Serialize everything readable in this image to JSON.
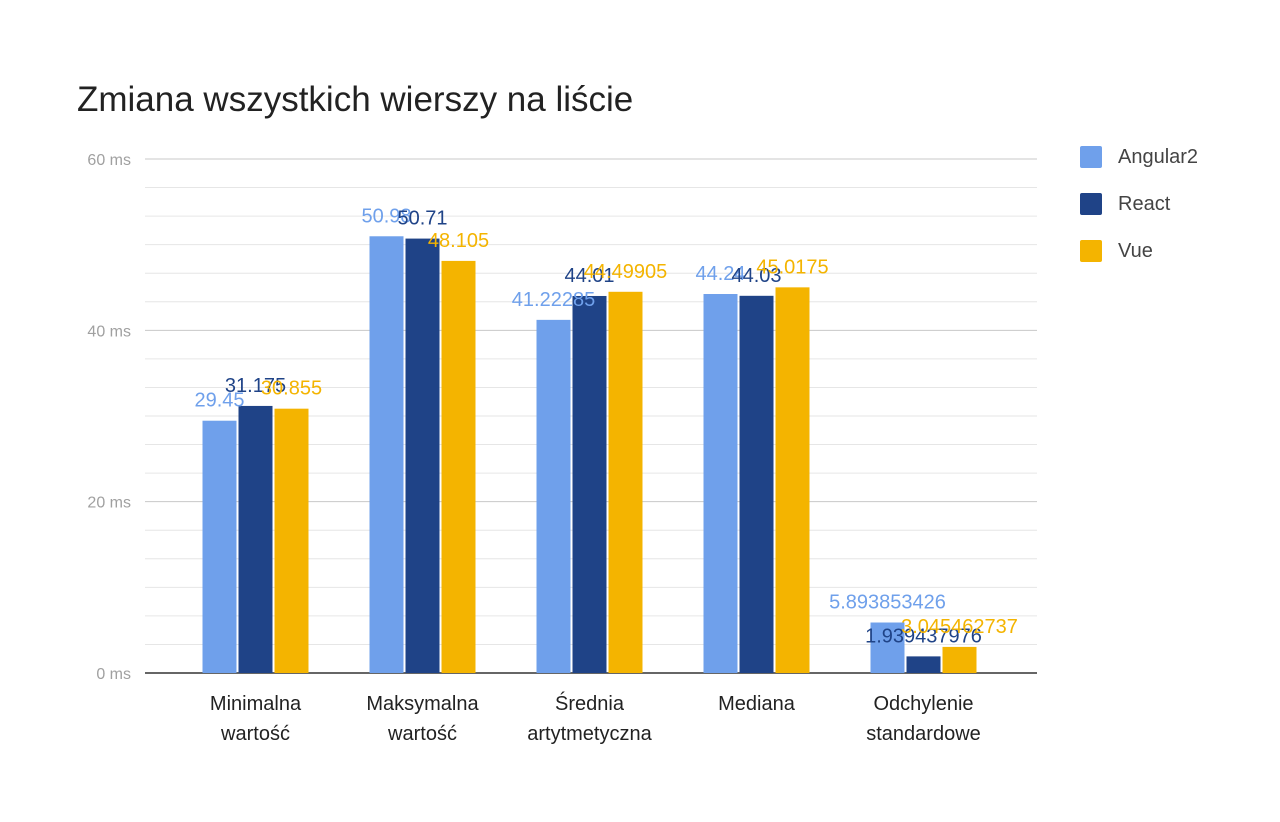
{
  "chart_data": {
    "type": "bar",
    "title": "Zmiana wszystkich wierszy na liście",
    "xlabel": "",
    "ylabel": "",
    "ylim": [
      0,
      60
    ],
    "yticks": [
      0,
      20,
      40,
      60
    ],
    "ytick_labels": [
      "0 ms",
      "20 ms",
      "40 ms",
      "60 ms"
    ],
    "minor_gridlines_per_interval": 6,
    "grid": true,
    "legend_position": "right",
    "categories": [
      [
        "Minimalna",
        "wartość"
      ],
      [
        "Maksymalna",
        "wartość"
      ],
      [
        "Średnia",
        "artytmetyczna"
      ],
      [
        "Mediana"
      ],
      [
        "Odchylenie",
        "standardowe"
      ]
    ],
    "series": [
      {
        "name": "Angular2",
        "color": "#6fa0eb",
        "values": [
          29.45,
          50.98,
          41.22285,
          44.24,
          5.893853426
        ],
        "labels": [
          "29.45",
          "50.98",
          "41.22285",
          "44.24",
          "5.893853426"
        ]
      },
      {
        "name": "React",
        "color": "#1f4387",
        "values": [
          31.175,
          50.71,
          44.01,
          44.03,
          1.939437976
        ],
        "labels": [
          "31.175",
          "50.71",
          "44.01",
          "44.03",
          "1.939437976"
        ]
      },
      {
        "name": "Vue",
        "color": "#f4b400",
        "values": [
          30.855,
          48.105,
          44.49905,
          45.0175,
          3.045462737
        ],
        "labels": [
          "30.855",
          "48.105",
          "44.49905",
          "45.0175",
          "3.045462737"
        ]
      }
    ]
  }
}
